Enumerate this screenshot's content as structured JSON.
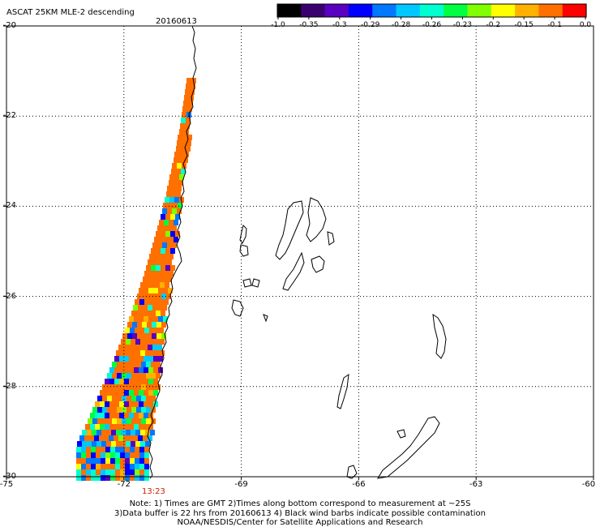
{
  "header": {
    "title": "ASCAT 25KM MLE-2 descending",
    "date": "20160613"
  },
  "time_label": "13:23",
  "colorbar": {
    "labels": [
      "-1.0",
      "-0.35",
      "-0.3",
      "-0.29",
      "-0.28",
      "-0.26",
      "-0.23",
      "-0.2",
      "-0.15",
      "-0.1",
      "0.0"
    ],
    "colors": [
      "#000000",
      "#3a0070",
      "#5a00c0",
      "#0000ff",
      "#0078ff",
      "#00c8ff",
      "#00ffd0",
      "#00ff40",
      "#80ff00",
      "#ffff00",
      "#ffb000",
      "#ff7000",
      "#ff0000"
    ]
  },
  "axes": {
    "lon_ticks": [
      "-75",
      "-72",
      "-69",
      "-66",
      "-63",
      "-60"
    ],
    "lat_ticks": [
      "-20",
      "-22",
      "-24",
      "-26",
      "-28",
      "-30"
    ],
    "lon_range": [
      -75,
      -60
    ],
    "lat_range": [
      -30,
      -20
    ]
  },
  "notes": {
    "line1": "Note: 1) Times are GMT 2)Times along bottom correspond to measurement at ~25S",
    "line2": "3)Data buffer is 22 hrs from 20160613 4) Black wind barbs indicate possible contamination",
    "line3": "NOAA/NESDIS/Center for Satellite Applications and Research"
  }
}
